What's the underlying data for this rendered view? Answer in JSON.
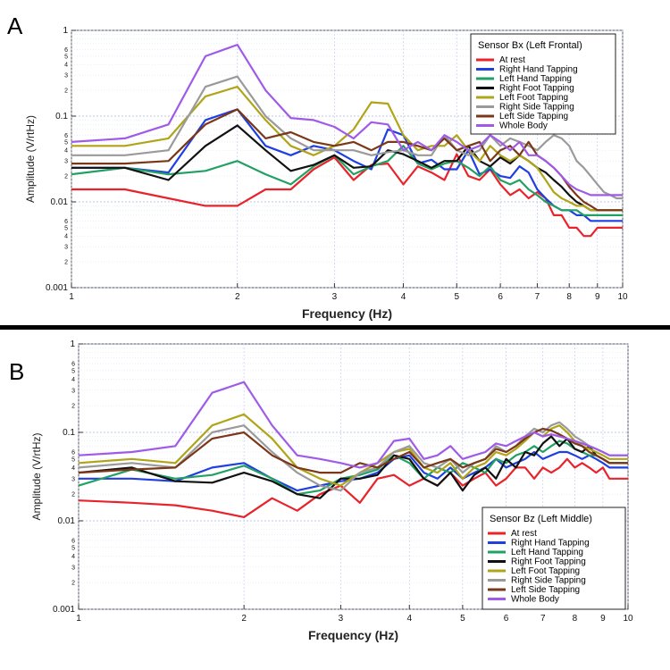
{
  "colors": {
    "At rest": "#e8232b",
    "Right Hand Tapping": "#1f3fe0",
    "Left Hand Tapping": "#23a064",
    "Right Foot Tapping": "#111111",
    "Left Foot Tapping": "#b0a418",
    "Right Side Tapping": "#9a9a9a",
    "Left Side Tapping": "#7a3818",
    "Whole Body": "#a05ae8"
  },
  "chart_data": [
    {
      "panel": "A",
      "type": "line",
      "title": "Sensor Bx (Left Frontal)",
      "xlabel": "Frequency (Hz)",
      "ylabel": "Amplitude (V/rtHz)",
      "xscale": "log",
      "yscale": "log",
      "xlim": [
        1,
        10
      ],
      "ylim": [
        0.001,
        1
      ],
      "x_tick_labels": [
        "1",
        "2",
        "3",
        "4",
        "5",
        "6",
        "7",
        "8",
        "9",
        "10"
      ],
      "y_tick_labels": [
        "0.001",
        "0.01",
        "0.1",
        "1"
      ],
      "y_minor_labels": [
        "2",
        "3",
        "4",
        "5",
        "6",
        "2",
        "3",
        "4",
        "5",
        "6",
        "2",
        "3",
        "4",
        "5",
        "6"
      ],
      "legend_position": "top-right",
      "x": [
        1.0,
        1.25,
        1.5,
        1.75,
        2.0,
        2.25,
        2.5,
        2.75,
        3.0,
        3.25,
        3.5,
        3.75,
        4.0,
        4.25,
        4.5,
        4.75,
        5.0,
        5.25,
        5.5,
        5.75,
        6.0,
        6.25,
        6.5,
        6.75,
        7.0,
        7.25,
        7.5,
        7.75,
        8.0,
        8.25,
        8.5,
        8.75,
        9.0,
        9.25,
        9.5,
        9.75,
        10.0
      ],
      "series": [
        {
          "name": "At rest",
          "values": [
            0.014,
            0.014,
            0.011,
            0.009,
            0.009,
            0.014,
            0.014,
            0.024,
            0.033,
            0.018,
            0.027,
            0.028,
            0.016,
            0.026,
            0.022,
            0.018,
            0.036,
            0.02,
            0.018,
            0.024,
            0.016,
            0.012,
            0.014,
            0.011,
            0.013,
            0.011,
            0.007,
            0.007,
            0.005,
            0.005,
            0.004,
            0.004,
            0.005,
            0.005,
            0.005,
            0.005,
            0.005
          ]
        },
        {
          "name": "Right Hand Tapping",
          "values": [
            0.025,
            0.025,
            0.022,
            0.09,
            0.12,
            0.045,
            0.035,
            0.045,
            0.04,
            0.03,
            0.024,
            0.07,
            0.06,
            0.028,
            0.031,
            0.024,
            0.024,
            0.04,
            0.021,
            0.024,
            0.02,
            0.019,
            0.026,
            0.022,
            0.014,
            0.011,
            0.009,
            0.008,
            0.008,
            0.007,
            0.007,
            0.006,
            0.006,
            0.006,
            0.006,
            0.006,
            0.006
          ]
        },
        {
          "name": "Left Hand Tapping",
          "values": [
            0.021,
            0.025,
            0.021,
            0.023,
            0.03,
            0.021,
            0.016,
            0.026,
            0.035,
            0.021,
            0.026,
            0.03,
            0.045,
            0.028,
            0.024,
            0.028,
            0.03,
            0.025,
            0.02,
            0.026,
            0.018,
            0.016,
            0.018,
            0.014,
            0.012,
            0.01,
            0.009,
            0.008,
            0.008,
            0.008,
            0.007,
            0.007,
            0.007,
            0.007,
            0.007,
            0.007,
            0.007
          ]
        },
        {
          "name": "Right Foot Tapping",
          "values": [
            0.025,
            0.025,
            0.018,
            0.045,
            0.078,
            0.04,
            0.023,
            0.027,
            0.035,
            0.025,
            0.026,
            0.04,
            0.036,
            0.03,
            0.025,
            0.03,
            0.03,
            0.045,
            0.03,
            0.026,
            0.033,
            0.028,
            0.035,
            0.03,
            0.025,
            0.022,
            0.018,
            0.015,
            0.012,
            0.01,
            0.009,
            0.008,
            0.008,
            0.008,
            0.008,
            0.008,
            0.008
          ]
        },
        {
          "name": "Left Foot Tapping",
          "values": [
            0.045,
            0.045,
            0.055,
            0.17,
            0.22,
            0.09,
            0.045,
            0.035,
            0.045,
            0.07,
            0.145,
            0.14,
            0.06,
            0.04,
            0.045,
            0.045,
            0.06,
            0.04,
            0.03,
            0.045,
            0.035,
            0.03,
            0.035,
            0.03,
            0.025,
            0.018,
            0.013,
            0.011,
            0.01,
            0.009,
            0.009,
            0.008,
            0.008,
            0.008,
            0.008,
            0.008,
            0.008
          ]
        },
        {
          "name": "Right Side Tapping",
          "values": [
            0.035,
            0.035,
            0.04,
            0.22,
            0.29,
            0.1,
            0.055,
            0.04,
            0.04,
            0.04,
            0.035,
            0.038,
            0.04,
            0.035,
            0.035,
            0.06,
            0.04,
            0.035,
            0.04,
            0.06,
            0.045,
            0.055,
            0.05,
            0.045,
            0.04,
            0.05,
            0.06,
            0.055,
            0.045,
            0.03,
            0.025,
            0.02,
            0.016,
            0.013,
            0.012,
            0.011,
            0.011
          ]
        },
        {
          "name": "Left Side Tapping",
          "values": [
            0.028,
            0.028,
            0.03,
            0.08,
            0.12,
            0.055,
            0.065,
            0.05,
            0.045,
            0.05,
            0.04,
            0.05,
            0.05,
            0.045,
            0.04,
            0.055,
            0.04,
            0.045,
            0.05,
            0.03,
            0.04,
            0.045,
            0.035,
            0.05,
            0.035,
            0.03,
            0.025,
            0.02,
            0.015,
            0.012,
            0.01,
            0.009,
            0.008,
            0.008,
            0.008,
            0.008,
            0.008
          ]
        },
        {
          "name": "Whole Body",
          "values": [
            0.05,
            0.055,
            0.08,
            0.5,
            0.68,
            0.2,
            0.095,
            0.09,
            0.075,
            0.055,
            0.085,
            0.08,
            0.04,
            0.05,
            0.04,
            0.06,
            0.05,
            0.04,
            0.045,
            0.06,
            0.05,
            0.04,
            0.05,
            0.035,
            0.035,
            0.03,
            0.025,
            0.02,
            0.016,
            0.014,
            0.013,
            0.012,
            0.012,
            0.012,
            0.012,
            0.012,
            0.012
          ]
        }
      ]
    },
    {
      "panel": "B",
      "type": "line",
      "title": "Sensor Bz (Left Middle)",
      "xlabel": "Frequency (Hz)",
      "ylabel": "Amplitude (V/rtHz)",
      "xscale": "log",
      "yscale": "log",
      "xlim": [
        1,
        10
      ],
      "ylim": [
        0.001,
        1
      ],
      "x_tick_labels": [
        "1",
        "2",
        "3",
        "4",
        "5",
        "6",
        "7",
        "8",
        "9",
        "10"
      ],
      "y_tick_labels": [
        "0.001",
        "0.01",
        "0.1",
        "1"
      ],
      "y_minor_labels": [
        "2",
        "3",
        "4",
        "5",
        "6",
        "2",
        "3",
        "4",
        "5",
        "6",
        "2",
        "3",
        "4",
        "5",
        "6"
      ],
      "legend_position": "bottom-right",
      "x": [
        1.0,
        1.25,
        1.5,
        1.75,
        2.0,
        2.25,
        2.5,
        2.75,
        3.0,
        3.25,
        3.5,
        3.75,
        4.0,
        4.25,
        4.5,
        4.75,
        5.0,
        5.25,
        5.5,
        5.75,
        6.0,
        6.25,
        6.5,
        6.75,
        7.0,
        7.25,
        7.5,
        7.75,
        8.0,
        8.25,
        8.5,
        8.75,
        9.0,
        9.25,
        9.5,
        9.75,
        10.0
      ],
      "series": [
        {
          "name": "At rest",
          "values": [
            0.017,
            0.016,
            0.015,
            0.013,
            0.011,
            0.018,
            0.013,
            0.02,
            0.025,
            0.016,
            0.03,
            0.033,
            0.025,
            0.03,
            0.025,
            0.035,
            0.025,
            0.03,
            0.035,
            0.025,
            0.03,
            0.04,
            0.04,
            0.03,
            0.04,
            0.035,
            0.04,
            0.05,
            0.04,
            0.045,
            0.04,
            0.035,
            0.04,
            0.03,
            0.03,
            0.03,
            0.03
          ]
        },
        {
          "name": "Right Hand Tapping",
          "values": [
            0.03,
            0.03,
            0.028,
            0.04,
            0.045,
            0.03,
            0.022,
            0.025,
            0.028,
            0.03,
            0.035,
            0.05,
            0.055,
            0.035,
            0.03,
            0.04,
            0.03,
            0.035,
            0.04,
            0.05,
            0.04,
            0.045,
            0.05,
            0.06,
            0.05,
            0.055,
            0.06,
            0.06,
            0.055,
            0.05,
            0.055,
            0.05,
            0.045,
            0.04,
            0.04,
            0.04,
            0.04
          ]
        },
        {
          "name": "Left Hand Tapping",
          "values": [
            0.025,
            0.038,
            0.03,
            0.033,
            0.042,
            0.03,
            0.02,
            0.022,
            0.03,
            0.033,
            0.038,
            0.055,
            0.045,
            0.03,
            0.04,
            0.035,
            0.045,
            0.04,
            0.035,
            0.05,
            0.045,
            0.055,
            0.06,
            0.07,
            0.06,
            0.07,
            0.08,
            0.075,
            0.065,
            0.06,
            0.055,
            0.055,
            0.05,
            0.045,
            0.045,
            0.045,
            0.045
          ]
        },
        {
          "name": "Right Foot Tapping",
          "values": [
            0.035,
            0.04,
            0.028,
            0.027,
            0.035,
            0.028,
            0.02,
            0.018,
            0.03,
            0.03,
            0.033,
            0.055,
            0.05,
            0.03,
            0.025,
            0.035,
            0.022,
            0.033,
            0.04,
            0.03,
            0.05,
            0.04,
            0.06,
            0.055,
            0.075,
            0.09,
            0.07,
            0.085,
            0.065,
            0.06,
            0.07,
            0.055,
            0.05,
            0.045,
            0.045,
            0.045,
            0.045
          ]
        },
        {
          "name": "Left Foot Tapping",
          "values": [
            0.045,
            0.05,
            0.045,
            0.12,
            0.16,
            0.085,
            0.04,
            0.03,
            0.025,
            0.035,
            0.045,
            0.06,
            0.065,
            0.04,
            0.035,
            0.045,
            0.03,
            0.04,
            0.045,
            0.06,
            0.055,
            0.065,
            0.08,
            0.1,
            0.09,
            0.11,
            0.12,
            0.1,
            0.08,
            0.07,
            0.065,
            0.06,
            0.055,
            0.05,
            0.05,
            0.05,
            0.05
          ]
        },
        {
          "name": "Right Side Tapping",
          "values": [
            0.04,
            0.045,
            0.04,
            0.1,
            0.12,
            0.06,
            0.035,
            0.025,
            0.022,
            0.035,
            0.04,
            0.06,
            0.07,
            0.045,
            0.04,
            0.05,
            0.035,
            0.045,
            0.05,
            0.07,
            0.06,
            0.07,
            0.09,
            0.11,
            0.1,
            0.12,
            0.13,
            0.11,
            0.09,
            0.08,
            0.07,
            0.065,
            0.06,
            0.055,
            0.055,
            0.055,
            0.055
          ]
        },
        {
          "name": "Left Side Tapping",
          "values": [
            0.035,
            0.038,
            0.04,
            0.085,
            0.1,
            0.055,
            0.04,
            0.035,
            0.035,
            0.045,
            0.04,
            0.05,
            0.06,
            0.04,
            0.045,
            0.05,
            0.04,
            0.045,
            0.05,
            0.065,
            0.06,
            0.07,
            0.085,
            0.1,
            0.11,
            0.105,
            0.095,
            0.085,
            0.075,
            0.07,
            0.06,
            0.055,
            0.05,
            0.045,
            0.045,
            0.045,
            0.045
          ]
        },
        {
          "name": "Whole Body",
          "values": [
            0.055,
            0.06,
            0.07,
            0.28,
            0.37,
            0.12,
            0.055,
            0.05,
            0.045,
            0.04,
            0.045,
            0.08,
            0.085,
            0.05,
            0.055,
            0.07,
            0.05,
            0.055,
            0.06,
            0.075,
            0.07,
            0.08,
            0.09,
            0.1,
            0.09,
            0.095,
            0.09,
            0.085,
            0.08,
            0.075,
            0.07,
            0.065,
            0.06,
            0.055,
            0.055,
            0.055,
            0.055
          ]
        }
      ]
    }
  ]
}
